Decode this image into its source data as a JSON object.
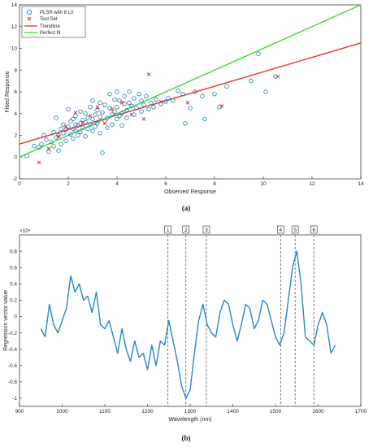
{
  "chart_data": [
    {
      "type": "scatter",
      "xlabel": "Observed Response",
      "ylabel": "Fitted Response",
      "xlim": [
        0,
        14
      ],
      "ylim": [
        -2,
        14
      ],
      "xticks": [
        0,
        2,
        4,
        6,
        8,
        10,
        12,
        14
      ],
      "yticks": [
        -2,
        0,
        2,
        4,
        6,
        8,
        10,
        12,
        14
      ],
      "grid": false,
      "legend_position": "top-left",
      "panel_label": "(a)",
      "legend": [
        "PLSR with 8 LV",
        "Test Set",
        "Trendline",
        "Perfect fit"
      ],
      "colors": {
        "plsr": "#1f77b4",
        "test": "#d62728",
        "trend": "#e8302a",
        "perfect": "#33dd33"
      },
      "series": [
        {
          "name": "PLSR with 8 LV",
          "kind": "circle",
          "points": [
            [
              0.3,
              0.1
            ],
            [
              0.6,
              1.0
            ],
            [
              0.8,
              0.9
            ],
            [
              0.9,
              1.2
            ],
            [
              1.0,
              2.0
            ],
            [
              1.1,
              1.6
            ],
            [
              1.2,
              0.5
            ],
            [
              1.3,
              1.4
            ],
            [
              1.4,
              1.0
            ],
            [
              1.4,
              2.3
            ],
            [
              1.5,
              1.8
            ],
            [
              1.5,
              3.6
            ],
            [
              1.6,
              2.0
            ],
            [
              1.6,
              0.6
            ],
            [
              1.7,
              2.6
            ],
            [
              1.7,
              1.2
            ],
            [
              1.8,
              2.2
            ],
            [
              1.8,
              3.0
            ],
            [
              1.9,
              2.5
            ],
            [
              1.9,
              1.5
            ],
            [
              2.0,
              2.8
            ],
            [
              2.0,
              4.4
            ],
            [
              2.1,
              2.1
            ],
            [
              2.1,
              3.3
            ],
            [
              2.2,
              1.7
            ],
            [
              2.2,
              2.6
            ],
            [
              2.2,
              3.5
            ],
            [
              2.3,
              2.4
            ],
            [
              2.3,
              3.0
            ],
            [
              2.3,
              3.8
            ],
            [
              2.4,
              2.0
            ],
            [
              2.4,
              2.9
            ],
            [
              2.5,
              3.1
            ],
            [
              2.5,
              2.3
            ],
            [
              2.5,
              4.2
            ],
            [
              2.6,
              3.4
            ],
            [
              2.6,
              2.7
            ],
            [
              2.7,
              3.2
            ],
            [
              2.7,
              1.9
            ],
            [
              2.7,
              4.0
            ],
            [
              2.8,
              2.6
            ],
            [
              2.8,
              3.6
            ],
            [
              2.9,
              3.0
            ],
            [
              2.9,
              4.6
            ],
            [
              3.0,
              2.4
            ],
            [
              3.0,
              3.5
            ],
            [
              3.0,
              5.2
            ],
            [
              3.1,
              3.9
            ],
            [
              3.1,
              2.8
            ],
            [
              3.2,
              4.3
            ],
            [
              3.2,
              3.1
            ],
            [
              3.3,
              5.0
            ],
            [
              3.3,
              2.2
            ],
            [
              3.3,
              3.7
            ],
            [
              3.4,
              4.1
            ],
            [
              3.4,
              0.4
            ],
            [
              3.5,
              3.3
            ],
            [
              3.5,
              4.8
            ],
            [
              3.6,
              3.6
            ],
            [
              3.6,
              2.7
            ],
            [
              3.7,
              4.5
            ],
            [
              3.7,
              5.8
            ],
            [
              3.8,
              3.9
            ],
            [
              3.8,
              3.0
            ],
            [
              3.9,
              5.3
            ],
            [
              3.9,
              4.2
            ],
            [
              4.0,
              3.5
            ],
            [
              4.0,
              6.0
            ],
            [
              4.0,
              4.6
            ],
            [
              4.1,
              3.8
            ],
            [
              4.1,
              5.2
            ],
            [
              4.2,
              4.0
            ],
            [
              4.2,
              2.9
            ],
            [
              4.3,
              4.9
            ],
            [
              4.3,
              5.6
            ],
            [
              4.4,
              4.3
            ],
            [
              4.4,
              3.6
            ],
            [
              4.5,
              5.0
            ],
            [
              4.5,
              6.0
            ],
            [
              4.6,
              4.7
            ],
            [
              4.7,
              5.4
            ],
            [
              4.7,
              3.9
            ],
            [
              4.8,
              4.5
            ],
            [
              4.9,
              5.8
            ],
            [
              5.0,
              4.2
            ],
            [
              5.0,
              5.2
            ],
            [
              5.1,
              4.8
            ],
            [
              5.2,
              5.6
            ],
            [
              5.3,
              4.4
            ],
            [
              5.4,
              5.0
            ],
            [
              5.5,
              4.6
            ],
            [
              5.6,
              5.3
            ],
            [
              5.8,
              4.9
            ],
            [
              6.0,
              5.1
            ],
            [
              6.1,
              5.4
            ],
            [
              6.3,
              5.2
            ],
            [
              6.5,
              6.1
            ],
            [
              6.7,
              5.8
            ],
            [
              6.8,
              3.1
            ],
            [
              7.0,
              4.5
            ],
            [
              7.2,
              6.0
            ],
            [
              7.5,
              5.6
            ],
            [
              7.6,
              3.5
            ],
            [
              8.0,
              5.8
            ],
            [
              8.2,
              4.6
            ],
            [
              8.5,
              6.5
            ],
            [
              9.5,
              7.0
            ],
            [
              9.8,
              9.5
            ],
            [
              10.1,
              6.0
            ],
            [
              10.5,
              7.4
            ]
          ]
        },
        {
          "name": "Test Set",
          "kind": "x",
          "points": [
            [
              0.8,
              -0.5
            ],
            [
              1.2,
              0.8
            ],
            [
              1.6,
              1.9
            ],
            [
              1.9,
              2.8
            ],
            [
              2.3,
              4.1
            ],
            [
              2.6,
              3.2
            ],
            [
              2.9,
              3.8
            ],
            [
              3.2,
              4.6
            ],
            [
              3.5,
              3.1
            ],
            [
              3.8,
              4.4
            ],
            [
              4.2,
              5.0
            ],
            [
              4.6,
              3.9
            ],
            [
              5.1,
              3.5
            ],
            [
              5.3,
              7.6
            ],
            [
              5.8,
              5.1
            ],
            [
              6.9,
              5.0
            ],
            [
              8.3,
              4.7
            ],
            [
              10.6,
              7.4
            ]
          ]
        }
      ],
      "lines": [
        {
          "name": "Trendline",
          "x": [
            0,
            14
          ],
          "y": [
            1.2,
            10.5
          ]
        },
        {
          "name": "Perfect fit",
          "x": [
            0,
            14
          ],
          "y": [
            0,
            14
          ]
        }
      ]
    },
    {
      "type": "line",
      "xlabel": "Wavelength (nm)",
      "ylabel": "Regression vector value",
      "exponent_label": "×10⁴",
      "xlim": [
        900,
        1700
      ],
      "ylim": [
        -1.1,
        1.0
      ],
      "xticks": [
        900,
        1000,
        1100,
        1200,
        1300,
        1400,
        1500,
        1600,
        1700
      ],
      "yticks": [
        -1,
        -0.8,
        -0.6,
        -0.4,
        -0.2,
        0,
        0.2,
        0.4,
        0.6,
        0.8
      ],
      "ytick_labels": [
        "-1",
        "-0.8",
        "-0.6",
        "-0.4",
        "-0.2",
        "0",
        "0.2",
        "0.4",
        "0.6",
        "0.8"
      ],
      "panel_label": "(b)",
      "color": "#2a87c4",
      "x": [
        950,
        960,
        970,
        980,
        990,
        1000,
        1010,
        1020,
        1030,
        1040,
        1050,
        1060,
        1070,
        1080,
        1090,
        1100,
        1110,
        1120,
        1130,
        1140,
        1150,
        1160,
        1170,
        1180,
        1190,
        1200,
        1210,
        1220,
        1230,
        1240,
        1250,
        1260,
        1270,
        1280,
        1290,
        1300,
        1310,
        1320,
        1330,
        1340,
        1350,
        1360,
        1370,
        1380,
        1390,
        1400,
        1410,
        1420,
        1430,
        1440,
        1450,
        1460,
        1470,
        1480,
        1490,
        1500,
        1510,
        1520,
        1530,
        1540,
        1550,
        1560,
        1570,
        1580,
        1590,
        1600,
        1610,
        1620,
        1630,
        1640
      ],
      "y": [
        -0.15,
        -0.25,
        0.15,
        -0.1,
        -0.2,
        -0.05,
        0.1,
        0.5,
        0.3,
        0.4,
        0.2,
        0.25,
        0.05,
        0.3,
        -0.1,
        -0.15,
        -0.05,
        -0.25,
        -0.45,
        -0.15,
        -0.4,
        -0.55,
        -0.3,
        -0.5,
        -0.45,
        -0.65,
        -0.35,
        -0.6,
        -0.3,
        -0.35,
        -0.05,
        -0.3,
        -0.55,
        -0.85,
        -1.0,
        -0.9,
        -0.45,
        -0.05,
        0.15,
        -0.1,
        -0.2,
        -0.25,
        0.05,
        0.2,
        0.15,
        -0.1,
        -0.3,
        -0.1,
        0.15,
        0.1,
        -0.15,
        -0.05,
        0.2,
        0.15,
        -0.05,
        -0.25,
        -0.35,
        -0.2,
        0.2,
        0.6,
        0.8,
        0.4,
        -0.25,
        -0.3,
        -0.35,
        -0.1,
        0.05,
        -0.1,
        -0.45,
        -0.35
      ],
      "markers": [
        {
          "label": "1",
          "x": 1248
        },
        {
          "label": "2",
          "x": 1290
        },
        {
          "label": "3",
          "x": 1338
        },
        {
          "label": "4",
          "x": 1512
        },
        {
          "label": "5",
          "x": 1546
        },
        {
          "label": "6",
          "x": 1590
        }
      ]
    }
  ]
}
